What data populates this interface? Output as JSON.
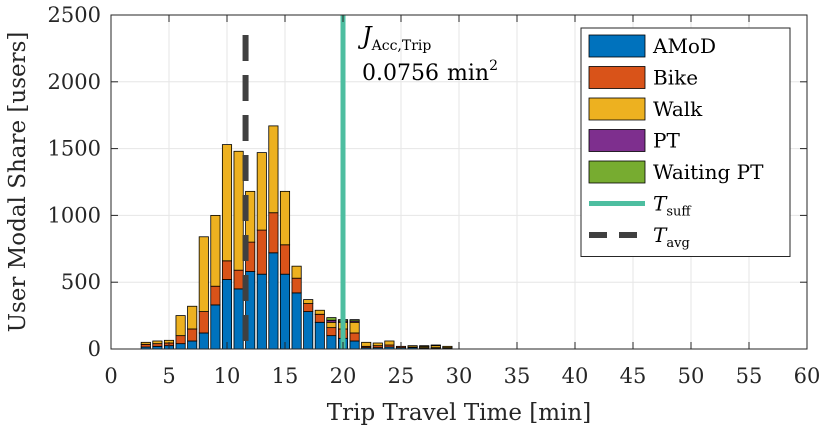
{
  "chart_data": {
    "type": "bar",
    "stacked": true,
    "xlabel": "Trip Travel Time [min]",
    "ylabel": "User Modal Share [users]",
    "xlim": [
      0,
      60
    ],
    "ylim": [
      0,
      2500
    ],
    "xticks": [
      0,
      5,
      10,
      15,
      20,
      25,
      30,
      35,
      40,
      45,
      50,
      55,
      60
    ],
    "yticks": [
      0,
      500,
      1000,
      1500,
      2000,
      2500
    ],
    "grid": true,
    "bin_width": 1,
    "bin_centers": [
      3,
      4,
      5,
      6,
      7,
      8,
      9,
      10,
      11,
      12,
      13,
      14,
      15,
      16,
      17,
      18,
      19,
      20,
      21,
      22,
      23,
      24,
      25,
      26,
      27,
      28,
      29
    ],
    "series": [
      {
        "name": "AMoD",
        "color": "#0072BD",
        "values": [
          15,
          20,
          25,
          40,
          60,
          120,
          330,
          520,
          450,
          580,
          560,
          720,
          560,
          420,
          280,
          200,
          100,
          80,
          60,
          10,
          10,
          15,
          10,
          10,
          5,
          5,
          5
        ]
      },
      {
        "name": "Bike",
        "color": "#D95319",
        "values": [
          20,
          20,
          20,
          60,
          90,
          160,
          140,
          140,
          140,
          220,
          330,
          300,
          220,
          110,
          60,
          60,
          60,
          70,
          60,
          10,
          15,
          15,
          10,
          5,
          5,
          5,
          5
        ]
      },
      {
        "name": "Walk",
        "color": "#EDB120",
        "values": [
          15,
          20,
          20,
          150,
          170,
          560,
          530,
          870,
          890,
          380,
          580,
          650,
          400,
          90,
          30,
          30,
          40,
          50,
          80,
          30,
          20,
          30,
          0,
          10,
          10,
          15,
          10
        ]
      },
      {
        "name": "PT",
        "color": "#7E2F8E",
        "values": [
          0,
          0,
          0,
          0,
          0,
          0,
          0,
          0,
          0,
          0,
          0,
          0,
          0,
          0,
          0,
          0,
          15,
          10,
          10,
          0,
          0,
          0,
          0,
          0,
          5,
          5,
          0
        ]
      },
      {
        "name": "Waiting PT",
        "color": "#77AC30",
        "values": [
          0,
          0,
          0,
          0,
          0,
          0,
          0,
          0,
          0,
          0,
          0,
          0,
          0,
          0,
          0,
          0,
          20,
          10,
          10,
          0,
          0,
          0,
          0,
          0,
          0,
          0,
          0
        ]
      }
    ],
    "reference_lines": [
      {
        "legend_main": "T",
        "legend_sub": "suff",
        "x": 20,
        "color": "#4DBEA0",
        "style": "solid"
      },
      {
        "legend_main": "T",
        "legend_sub": "avg",
        "x": 11.6,
        "color": "#404040",
        "style": "dashed"
      }
    ],
    "annotation": {
      "symbol": "J",
      "subscript": "Acc,Trip",
      "value": "0.0756",
      "unit": "min",
      "unit_sup": "2"
    },
    "legend_position": "top-right"
  }
}
